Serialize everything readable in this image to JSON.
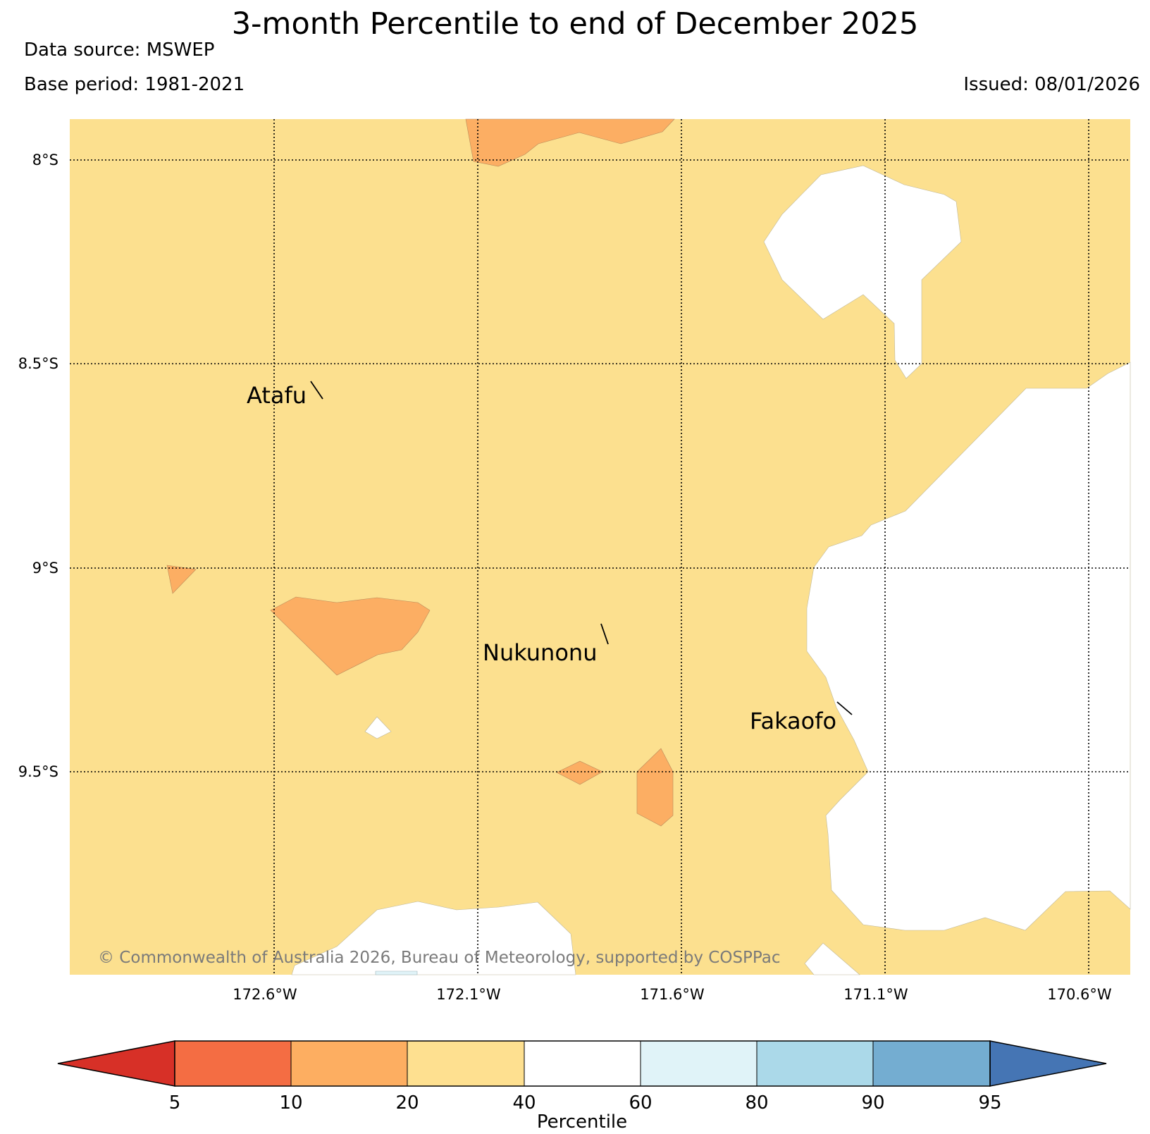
{
  "title": "3-month Percentile to end of December 2025",
  "data_source": "Data source: MSWEP",
  "base_period": "Base period: 1981-2021",
  "issued": "Issued: 08/01/2026",
  "copyright": "© Commonwealth of Australia 2026, Bureau of Meteorology, supported by COSPPac",
  "map": {
    "lat_labels": [
      "8°S",
      "8.5°S",
      "9°S",
      "9.5°S"
    ],
    "lon_labels": [
      "172.6°W",
      "172.1°W",
      "171.6°W",
      "171.1°W",
      "170.6°W"
    ],
    "places": [
      "Atafu",
      "Nukunonu",
      "Fakaofo"
    ]
  },
  "colorbar": {
    "label": "Percentile",
    "ticks": [
      "5",
      "10",
      "20",
      "40",
      "60",
      "80",
      "90",
      "95"
    ],
    "colors": [
      "#d73027",
      "#f46d43",
      "#fdae61",
      "#fee090",
      "#ffffff",
      "#e0f3f8",
      "#abd9e9",
      "#74add1",
      "#4575b4"
    ]
  },
  "colors": {
    "band_20_40": "#fce08f",
    "band_10_20": "#fcae63",
    "band_40_60": "#ffffff"
  }
}
